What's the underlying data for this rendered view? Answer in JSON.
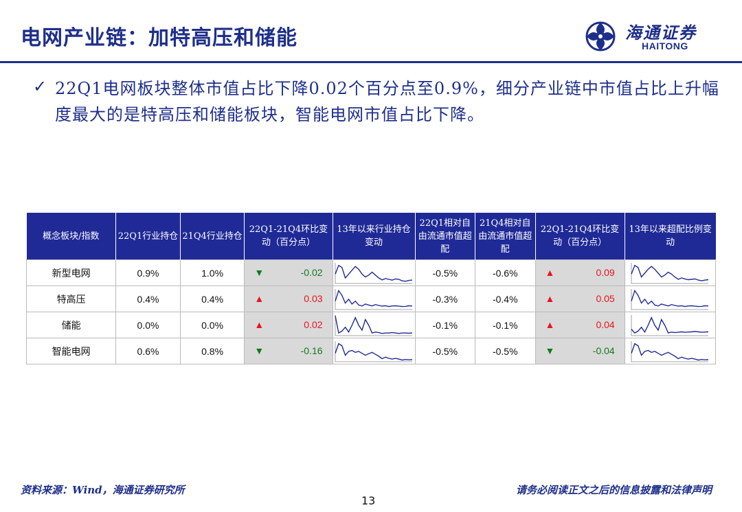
{
  "header": {
    "title": "电网产业链：加特高压和储能",
    "logo_cn": "海通证券",
    "logo_en": "HAITONG"
  },
  "bullet": {
    "check": "✓",
    "text": "22Q1电网板块整体市值占比下降0.02个百分点至0.9%，细分产业链中市值占比上升幅度最大的是特高压和储能板块，智能电网市值占比下降。"
  },
  "table": {
    "headers": [
      "概念板块/指数",
      "22Q1行业持仓",
      "21Q4行业持仓",
      "22Q1-21Q4环比变动（百分点）",
      "13年以来行业持仓变动",
      "22Q1相对自由流通市值超配",
      "21Q4相对自由流通市值超配",
      "22Q1-21Q4环比变动（百分点）",
      "13年以来超配比例变动"
    ],
    "rows": [
      {
        "name": "新型电网",
        "indent": false,
        "q1": "0.9%",
        "q4": "1.0%",
        "chg_dir": "down",
        "chg_arrow": "▼",
        "chg": "-0.02",
        "spark1": [
          0.55,
          0.1,
          0.2,
          0.75,
          0.55,
          0.35,
          0.15,
          0.3,
          0.55,
          0.7,
          0.6,
          0.45,
          0.6,
          0.75,
          0.85,
          0.78,
          0.82,
          0.86,
          0.8,
          0.82,
          0.9,
          0.92,
          0.88,
          0.86
        ],
        "rq1": "-0.5%",
        "rq4": "-0.6%",
        "rchg_dir": "up",
        "rchg_arrow": "▲",
        "rchg": "0.09",
        "spark2": [
          0.55,
          0.1,
          0.2,
          0.7,
          0.5,
          0.3,
          0.15,
          0.3,
          0.5,
          0.7,
          0.6,
          0.45,
          0.55,
          0.7,
          0.82,
          0.75,
          0.8,
          0.84,
          0.82,
          0.8,
          0.86,
          0.9,
          0.86,
          0.84
        ]
      },
      {
        "name": "特高压",
        "indent": true,
        "q1": "0.4%",
        "q4": "0.4%",
        "chg_dir": "up",
        "chg_arrow": "▲",
        "chg": "0.03",
        "spark1": [
          0.6,
          0.05,
          0.3,
          0.7,
          0.5,
          0.75,
          0.6,
          0.8,
          0.85,
          0.75,
          0.8,
          0.85,
          0.78,
          0.82,
          0.86,
          0.84,
          0.88,
          0.85,
          0.84,
          0.86,
          0.88,
          0.87,
          0.84,
          0.85
        ],
        "rq1": "-0.3%",
        "rq4": "-0.4%",
        "rchg_dir": "up",
        "rchg_arrow": "▲",
        "rchg": "0.05",
        "spark2": [
          0.6,
          0.05,
          0.3,
          0.7,
          0.5,
          0.75,
          0.6,
          0.8,
          0.85,
          0.75,
          0.8,
          0.85,
          0.78,
          0.82,
          0.86,
          0.84,
          0.88,
          0.85,
          0.84,
          0.86,
          0.88,
          0.87,
          0.84,
          0.85
        ]
      },
      {
        "name": "储能",
        "indent": true,
        "q1": "0.0%",
        "q4": "0.0%",
        "chg_dir": "up",
        "chg_arrow": "▲",
        "chg": "0.02",
        "spark1": [
          0.0,
          0.9,
          0.8,
          0.6,
          0.85,
          0.5,
          0.1,
          0.5,
          0.75,
          0.2,
          0.5,
          0.9,
          0.85,
          0.88,
          0.92,
          0.9,
          0.9,
          0.88,
          0.9,
          0.92,
          0.9,
          0.9,
          0.91,
          0.9
        ],
        "rq1": "-0.1%",
        "rq4": "-0.1%",
        "rchg_dir": "up",
        "rchg_arrow": "▲",
        "rchg": "0.04",
        "spark2": [
          0.7,
          0.9,
          0.8,
          0.6,
          0.85,
          0.5,
          0.1,
          0.5,
          0.75,
          0.2,
          0.5,
          0.9,
          0.85,
          0.88,
          0.86,
          0.84,
          0.86,
          0.85,
          0.84,
          0.82,
          0.84,
          0.86,
          0.85,
          0.84
        ]
      },
      {
        "name": "智能电网",
        "indent": true,
        "q1": "0.6%",
        "q4": "0.8%",
        "chg_dir": "down",
        "chg_arrow": "▼",
        "chg": "-0.16",
        "spark1": [
          0.6,
          0.1,
          0.2,
          0.7,
          0.5,
          0.45,
          0.55,
          0.5,
          0.6,
          0.7,
          0.62,
          0.55,
          0.65,
          0.75,
          0.88,
          0.8,
          0.86,
          0.9,
          0.86,
          0.9,
          0.95,
          0.92,
          0.94,
          0.93
        ],
        "rq1": "-0.5%",
        "rq4": "-0.5%",
        "rchg_dir": "down",
        "rchg_arrow": "▼",
        "rchg": "-0.04",
        "spark2": [
          0.6,
          0.1,
          0.2,
          0.7,
          0.5,
          0.45,
          0.55,
          0.5,
          0.6,
          0.7,
          0.62,
          0.55,
          0.65,
          0.75,
          0.88,
          0.8,
          0.86,
          0.9,
          0.86,
          0.9,
          0.95,
          0.92,
          0.94,
          0.93
        ]
      }
    ]
  },
  "footer": {
    "source": "资料来源：Wind，海通证券研究所",
    "disclaimer": "请务必阅读正文之后的信息披露和法律声明",
    "page": "13"
  },
  "colors": {
    "brand": "#1e2f8a",
    "header_bg": "#1f2a96",
    "up": "#e8141b",
    "down": "#117a1a",
    "spark": "#1f2a96"
  }
}
